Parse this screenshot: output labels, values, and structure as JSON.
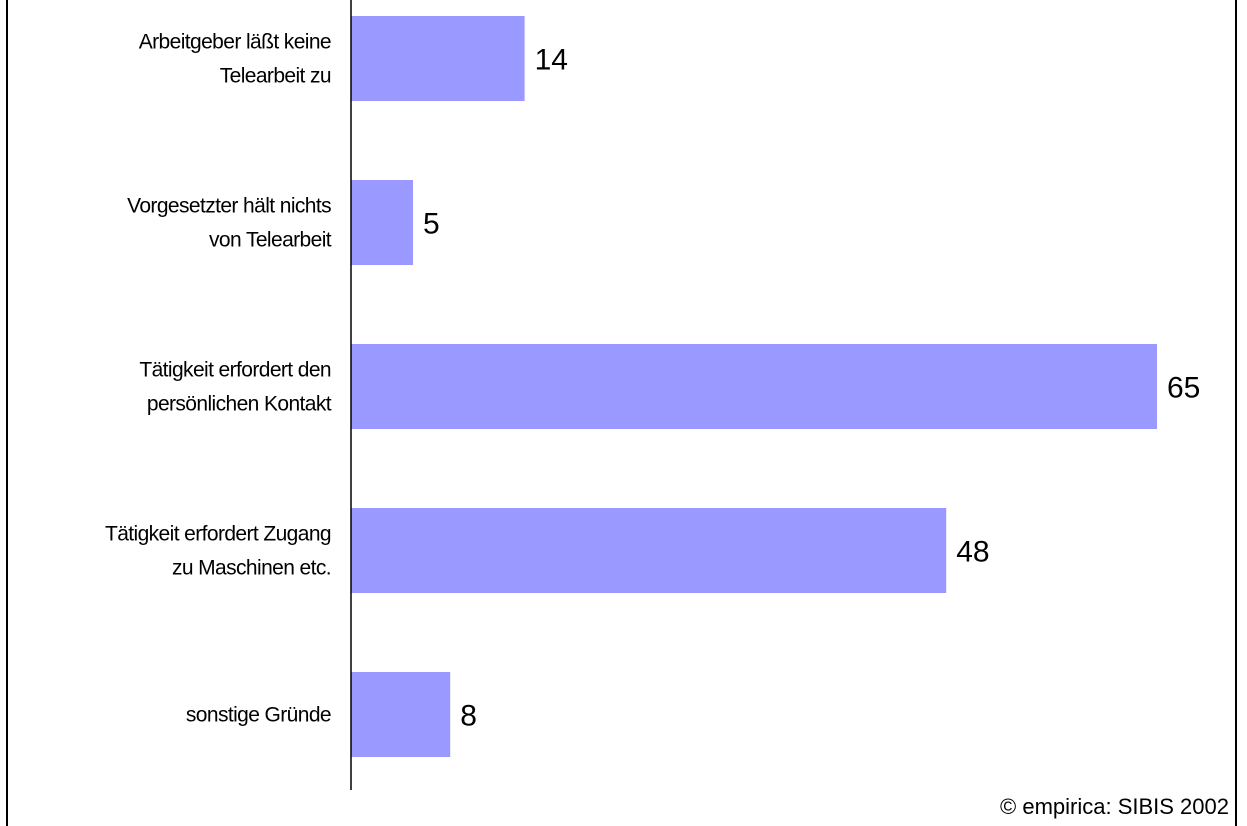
{
  "chart_data": {
    "type": "bar",
    "orientation": "horizontal",
    "categories": [
      [
        "Arbeitgeber läßt keine",
        "Telearbeit zu"
      ],
      [
        "Vorgesetzter hält nichts",
        "von Telearbeit"
      ],
      [
        "Tätigkeit erfordert den",
        "persönlichen Kontakt"
      ],
      [
        "Tätigkeit erfordert Zugang",
        "zu Maschinen etc."
      ],
      [
        "sonstige Gründe"
      ]
    ],
    "values": [
      14,
      5,
      65,
      48,
      8
    ],
    "bar_color": "#9999ff",
    "grid": false
  },
  "copyright": "© empirica: SIBIS 2002"
}
